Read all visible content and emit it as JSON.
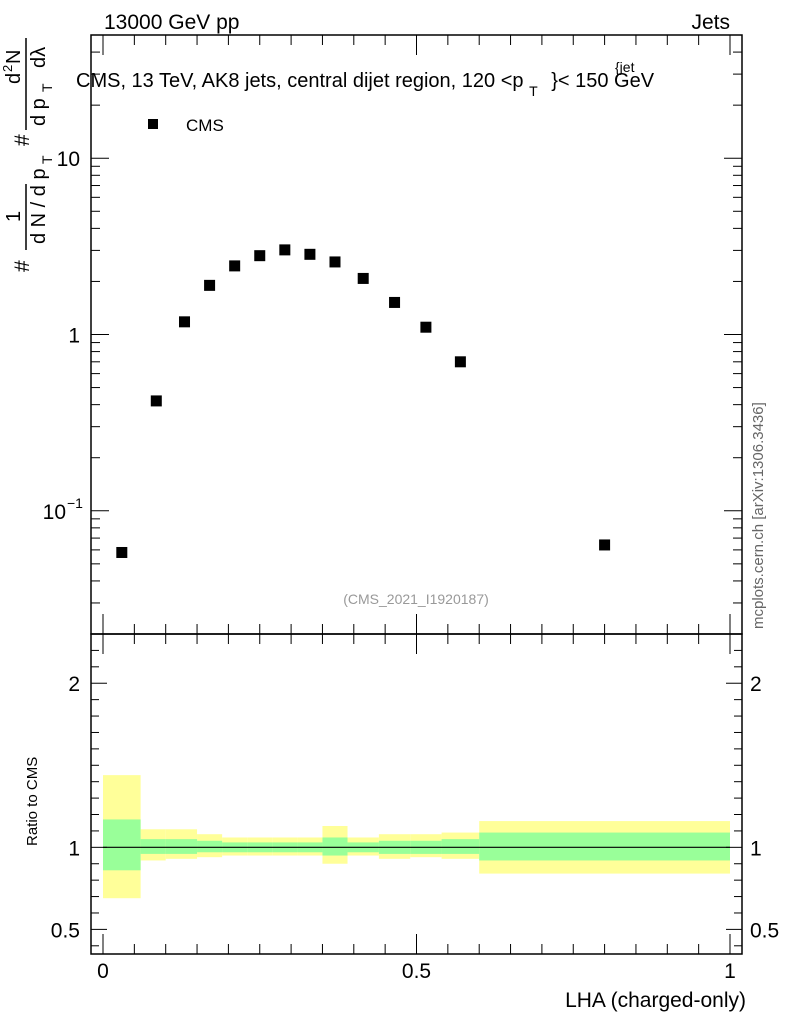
{
  "header": {
    "left_label": "13000 GeV pp",
    "right_label": "Jets"
  },
  "side_label": "mcplots.cern.ch [arXiv:1306.3436]",
  "chart_data": {
    "type": "scatter",
    "title": "CMS, 13 TeV, AK8 jets, central dijet region, 120 <p",
    "title_sub": "T",
    "title_sup": "{jet",
    "title_end": "}< 150 GeV",
    "analysis_id": "(CMS_2021_I1920187)",
    "xlabel": "LHA (charged-only)",
    "ylabel_parts": {
      "hash1": "#",
      "one": "1",
      "dN": "d N / d p",
      "T": "T",
      "hash2": "#",
      "d2N": "d",
      "two": "2",
      "N": "N",
      "dpT": "d p",
      "T2": "T",
      "dlambda": "dλ"
    },
    "legend": {
      "series_name": "CMS",
      "position": "top-left"
    },
    "xlim": [
      0,
      1
    ],
    "ylim_log": [
      0.02,
      50
    ],
    "x_ticks": [
      {
        "value": 0,
        "label": "0"
      },
      {
        "value": 0.5,
        "label": "0.5"
      },
      {
        "value": 1,
        "label": "1"
      }
    ],
    "y_ticks": [
      {
        "value": 0.1,
        "base": "10",
        "exp": "−1"
      },
      {
        "value": 1,
        "label": "1"
      },
      {
        "value": 10,
        "label": "10"
      }
    ],
    "series": [
      {
        "name": "CMS",
        "x": [
          0.03,
          0.085,
          0.13,
          0.17,
          0.21,
          0.25,
          0.29,
          0.33,
          0.37,
          0.415,
          0.465,
          0.515,
          0.57,
          0.8
        ],
        "values": [
          0.058,
          0.42,
          1.18,
          1.9,
          2.45,
          2.8,
          3.02,
          2.85,
          2.58,
          2.08,
          1.52,
          1.1,
          0.7,
          0.064
        ]
      }
    ],
    "ratio": {
      "ylabel": "Ratio to CMS",
      "ylim": [
        0.35,
        2.3
      ],
      "y_ticks": [
        {
          "value": 0.5,
          "label": "0.5"
        },
        {
          "value": 1,
          "label": "1"
        },
        {
          "value": 2,
          "label": "2"
        }
      ],
      "bins": [
        {
          "lo": 0.0,
          "hi": 0.06,
          "g_lo": 0.86,
          "g_hi": 1.17,
          "y_lo": 0.69,
          "y_hi": 1.44
        },
        {
          "lo": 0.06,
          "hi": 0.1,
          "g_lo": 0.96,
          "g_hi": 1.05,
          "y_lo": 0.92,
          "y_hi": 1.11
        },
        {
          "lo": 0.1,
          "hi": 0.15,
          "g_lo": 0.96,
          "g_hi": 1.05,
          "y_lo": 0.93,
          "y_hi": 1.11
        },
        {
          "lo": 0.15,
          "hi": 0.19,
          "g_lo": 0.97,
          "g_hi": 1.04,
          "y_lo": 0.94,
          "y_hi": 1.08
        },
        {
          "lo": 0.19,
          "hi": 0.23,
          "g_lo": 0.97,
          "g_hi": 1.03,
          "y_lo": 0.95,
          "y_hi": 1.06
        },
        {
          "lo": 0.23,
          "hi": 0.27,
          "g_lo": 0.97,
          "g_hi": 1.03,
          "y_lo": 0.95,
          "y_hi": 1.06
        },
        {
          "lo": 0.27,
          "hi": 0.31,
          "g_lo": 0.97,
          "g_hi": 1.03,
          "y_lo": 0.95,
          "y_hi": 1.06
        },
        {
          "lo": 0.31,
          "hi": 0.35,
          "g_lo": 0.97,
          "g_hi": 1.03,
          "y_lo": 0.95,
          "y_hi": 1.06
        },
        {
          "lo": 0.35,
          "hi": 0.39,
          "g_lo": 0.95,
          "g_hi": 1.06,
          "y_lo": 0.9,
          "y_hi": 1.13
        },
        {
          "lo": 0.39,
          "hi": 0.44,
          "g_lo": 0.97,
          "g_hi": 1.03,
          "y_lo": 0.95,
          "y_hi": 1.06
        },
        {
          "lo": 0.44,
          "hi": 0.49,
          "g_lo": 0.96,
          "g_hi": 1.04,
          "y_lo": 0.93,
          "y_hi": 1.08
        },
        {
          "lo": 0.49,
          "hi": 0.54,
          "g_lo": 0.96,
          "g_hi": 1.04,
          "y_lo": 0.94,
          "y_hi": 1.08
        },
        {
          "lo": 0.54,
          "hi": 0.6,
          "g_lo": 0.96,
          "g_hi": 1.05,
          "y_lo": 0.93,
          "y_hi": 1.09
        },
        {
          "lo": 0.6,
          "hi": 1.0,
          "g_lo": 0.92,
          "g_hi": 1.09,
          "y_lo": 0.84,
          "y_hi": 1.16
        }
      ],
      "reference_line": 1
    },
    "colors": {
      "green_band": "#99ff99",
      "yellow_band": "#ffff99",
      "marker": "#000000",
      "id_text": "#999999",
      "side_text": "#666666"
    }
  }
}
